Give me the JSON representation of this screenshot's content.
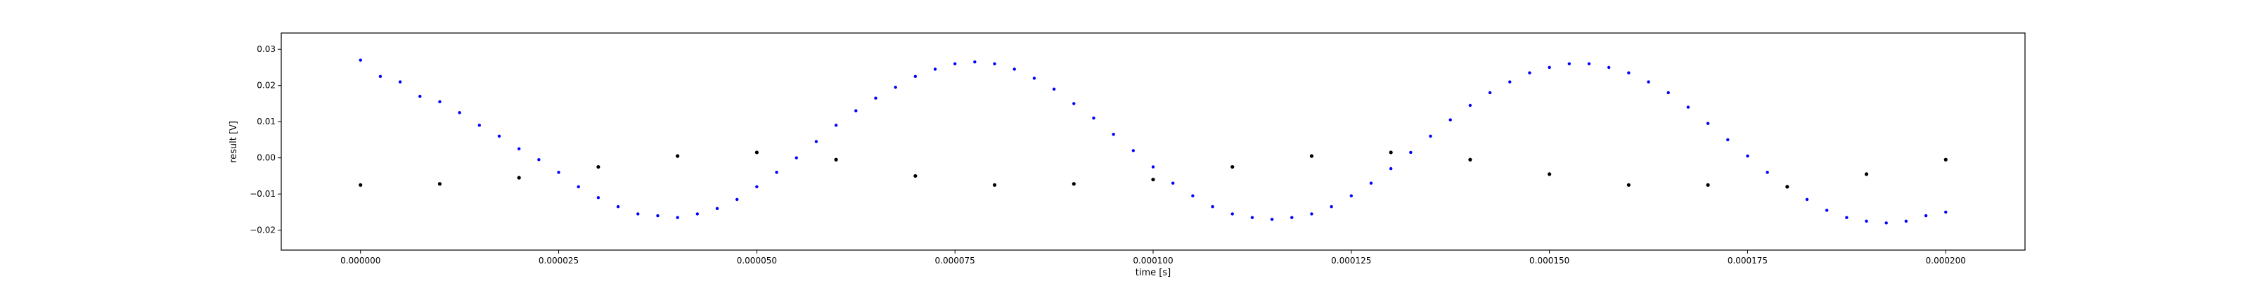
{
  "chart_data": {
    "type": "scatter",
    "xlabel": "time [s]",
    "ylabel": "result [V]",
    "xlim": [
      -1e-05,
      0.00021
    ],
    "ylim": [
      -0.0255,
      0.0345
    ],
    "grid": false,
    "xticks": [
      0.0,
      2.5e-05,
      5e-05,
      7.5e-05,
      0.0001,
      0.000125,
      0.00015,
      0.000175,
      0.0002
    ],
    "xtick_labels": [
      "0.000000",
      "0.000025",
      "0.000050",
      "0.000075",
      "0.000100",
      "0.000125",
      "0.000150",
      "0.000175",
      "0.000200"
    ],
    "yticks": [
      -0.02,
      -0.01,
      0.0,
      0.01,
      0.02,
      0.03
    ],
    "ytick_labels": [
      "−0.02",
      "−0.01",
      "0.00",
      "0.01",
      "0.02",
      "0.03"
    ],
    "series": [
      {
        "color": "#0000ff",
        "marker": "dot",
        "description_points": [
          [
            0.0,
            0.027
          ],
          [
            2.5e-06,
            0.0225
          ],
          [
            5e-06,
            0.021
          ],
          [
            7.5e-06,
            0.017
          ],
          [
            1e-05,
            0.0155
          ],
          [
            1.25e-05,
            0.0125
          ],
          [
            1.5e-05,
            0.009
          ],
          [
            1.75e-05,
            0.006
          ],
          [
            2e-05,
            0.0025
          ],
          [
            2.25e-05,
            -0.0005
          ],
          [
            2.5e-05,
            -0.004
          ],
          [
            2.75e-05,
            -0.008
          ],
          [
            3e-05,
            -0.011
          ],
          [
            3.25e-05,
            -0.0135
          ],
          [
            3.5e-05,
            -0.0155
          ],
          [
            3.75e-05,
            -0.016
          ],
          [
            4e-05,
            -0.0165
          ],
          [
            4.25e-05,
            -0.0155
          ],
          [
            4.5e-05,
            -0.014
          ],
          [
            4.75e-05,
            -0.0115
          ],
          [
            5e-05,
            -0.008
          ],
          [
            5.25e-05,
            -0.004
          ],
          [
            5.5e-05,
            0.0
          ],
          [
            5.75e-05,
            0.0045
          ],
          [
            6e-05,
            0.009
          ],
          [
            6.25e-05,
            0.013
          ],
          [
            6.5e-05,
            0.0165
          ],
          [
            6.75e-05,
            0.0195
          ],
          [
            7e-05,
            0.0225
          ],
          [
            7.25e-05,
            0.0245
          ],
          [
            7.5e-05,
            0.026
          ],
          [
            7.75e-05,
            0.0265
          ],
          [
            8e-05,
            0.026
          ],
          [
            8.25e-05,
            0.0245
          ],
          [
            8.5e-05,
            0.022
          ],
          [
            8.75e-05,
            0.019
          ],
          [
            9e-05,
            0.015
          ],
          [
            9.25e-05,
            0.011
          ],
          [
            9.5e-05,
            0.0065
          ],
          [
            9.75e-05,
            0.002
          ],
          [
            0.0001,
            -0.0025
          ],
          [
            0.0001025,
            -0.007
          ],
          [
            0.000105,
            -0.0105
          ],
          [
            0.0001075,
            -0.0135
          ],
          [
            0.00011,
            -0.0155
          ],
          [
            0.0001125,
            -0.0165
          ],
          [
            0.000115,
            -0.017
          ],
          [
            0.0001175,
            -0.0165
          ],
          [
            0.00012,
            -0.0155
          ],
          [
            0.0001225,
            -0.0135
          ],
          [
            0.000125,
            -0.0105
          ],
          [
            0.0001275,
            -0.007
          ],
          [
            0.00013,
            -0.003
          ],
          [
            0.0001325,
            0.0015
          ],
          [
            0.000135,
            0.006
          ],
          [
            0.0001375,
            0.0105
          ],
          [
            0.00014,
            0.0145
          ],
          [
            0.0001425,
            0.018
          ],
          [
            0.000145,
            0.021
          ],
          [
            0.0001475,
            0.0235
          ],
          [
            0.00015,
            0.025
          ],
          [
            0.0001525,
            0.026
          ],
          [
            0.000155,
            0.026
          ],
          [
            0.0001575,
            0.025
          ],
          [
            0.00016,
            0.0235
          ],
          [
            0.0001625,
            0.021
          ],
          [
            0.000165,
            0.018
          ],
          [
            0.0001675,
            0.014
          ],
          [
            0.00017,
            0.0095
          ],
          [
            0.0001725,
            0.005
          ],
          [
            0.000175,
            0.0005
          ],
          [
            0.0001775,
            -0.004
          ],
          [
            0.00018,
            -0.008
          ],
          [
            0.0001825,
            -0.0115
          ],
          [
            0.000185,
            -0.0145
          ],
          [
            0.0001875,
            -0.0165
          ],
          [
            0.00019,
            -0.0175
          ],
          [
            0.0001925,
            -0.018
          ],
          [
            0.000195,
            -0.0175
          ],
          [
            0.0001975,
            -0.016
          ],
          [
            0.0002,
            -0.015
          ]
        ]
      },
      {
        "color": "#000000",
        "marker": "dot",
        "description_points": [
          [
            0.0,
            -0.0075
          ],
          [
            1e-05,
            -0.0072
          ],
          [
            2e-05,
            -0.0055
          ],
          [
            3e-05,
            -0.0025
          ],
          [
            4e-05,
            0.0005
          ],
          [
            5e-05,
            0.0015
          ],
          [
            6e-05,
            -0.0005
          ],
          [
            7e-05,
            -0.005
          ],
          [
            8e-05,
            -0.0075
          ],
          [
            9e-05,
            -0.0072
          ],
          [
            0.0001,
            -0.006
          ],
          [
            0.00011,
            -0.0025
          ],
          [
            0.00012,
            0.0005
          ],
          [
            0.00013,
            0.0015
          ],
          [
            0.00014,
            -0.0005
          ],
          [
            0.00015,
            -0.0045
          ],
          [
            0.00016,
            -0.0075
          ],
          [
            0.00017,
            -0.0075
          ],
          [
            0.00018,
            -0.008
          ],
          [
            0.00019,
            -0.0045
          ],
          [
            0.0002,
            -0.0005
          ]
        ]
      }
    ]
  }
}
